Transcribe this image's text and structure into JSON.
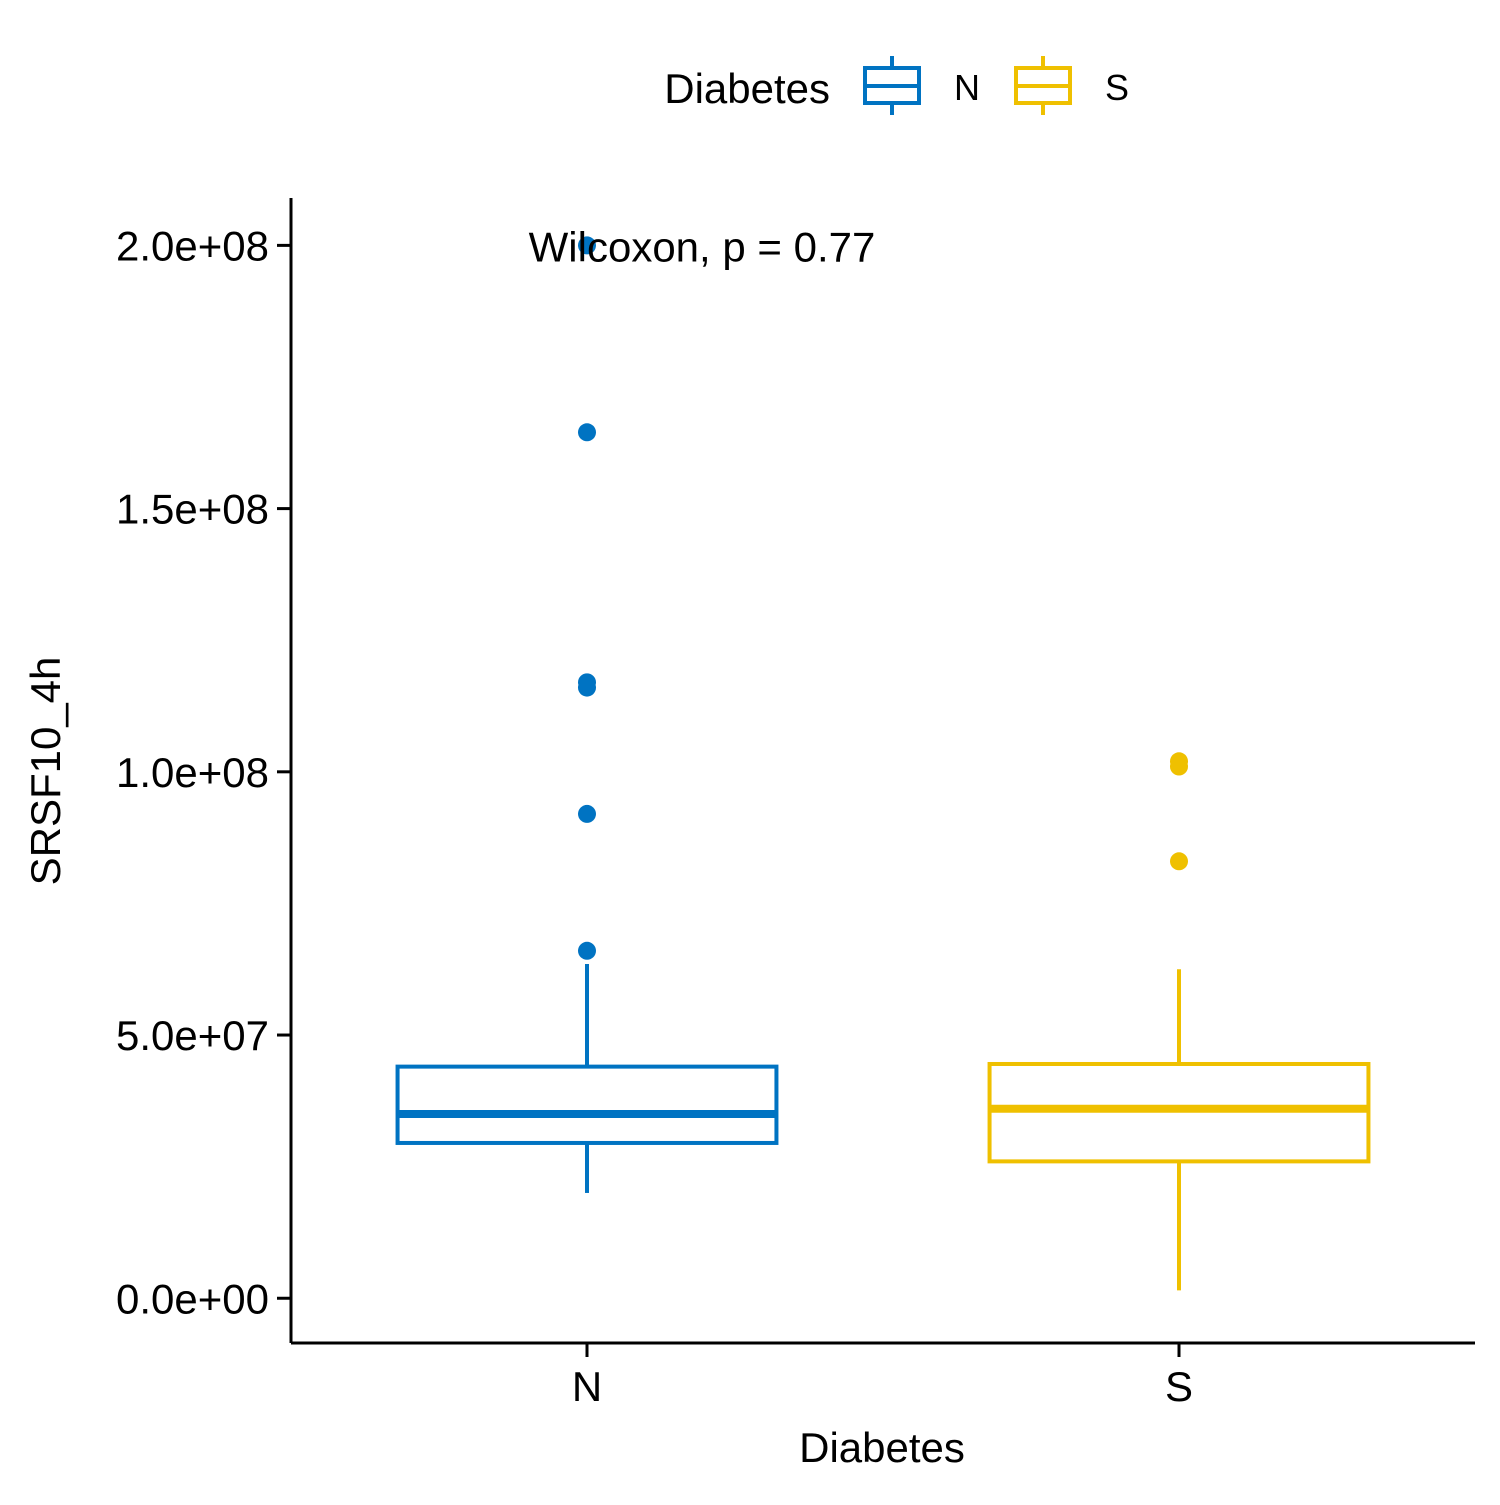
{
  "chart_data": {
    "type": "boxplot",
    "title": "",
    "xlabel": "Diabetes",
    "ylabel": "SRSF10_4h",
    "categories": [
      "N",
      "S"
    ],
    "ylim": [
      -8500000,
      209000000
    ],
    "yticks": [
      0,
      50000000,
      100000000,
      150000000,
      200000000
    ],
    "ytick_labels": [
      "0.0e+00",
      "5.0e+07",
      "1.0e+08",
      "1.5e+08",
      "2.0e+08"
    ],
    "legend": {
      "title": "Diabetes",
      "placement": "top",
      "entries": [
        "N",
        "S"
      ]
    },
    "annotation": "Wilcoxon, p = 0.77",
    "annotation_position": {
      "x_category": "N",
      "y": 200000000
    },
    "grid": false,
    "series": [
      {
        "name": "N",
        "color": "#0073C2",
        "whisker_low": 20000000,
        "q1": 29500000,
        "median": 35000000,
        "q3": 44000000,
        "whisker_high": 63500000,
        "outliers": [
          66000000,
          92000000,
          116000000,
          117000000,
          164500000,
          200000000
        ]
      },
      {
        "name": "S",
        "color": "#EFC000",
        "whisker_low": 1500000,
        "q1": 26000000,
        "median": 36000000,
        "q3": 44500000,
        "whisker_high": 62500000,
        "outliers": [
          83000000,
          101000000,
          102000000
        ]
      }
    ]
  }
}
